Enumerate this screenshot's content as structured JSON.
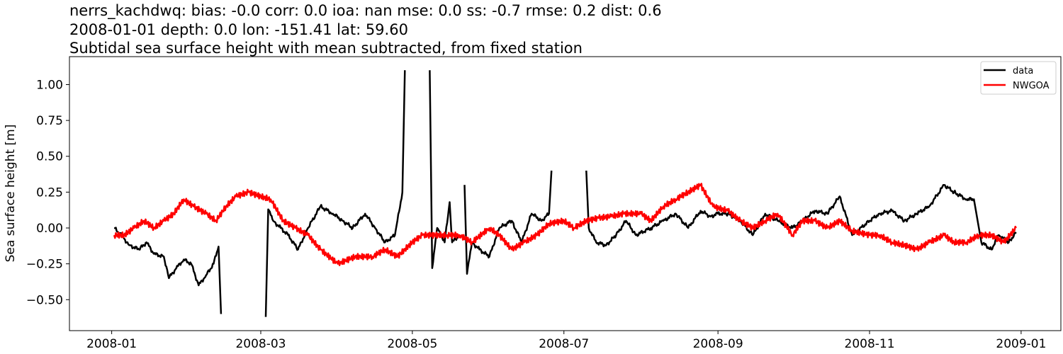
{
  "chart_data": {
    "type": "line",
    "title_lines": [
      "nerrs_kachdwq: bias: -0.0  corr: 0.0  ioa: nan  mse: 0.0  ss: -0.7  rmse: 0.2  dist: 0.6",
      "2008-01-01 depth: 0.0 lon: -151.41 lat: 59.60",
      "Subtidal sea surface height with mean subtracted, from fixed station"
    ],
    "xlabel": "",
    "ylabel": "Sea surface height [m]",
    "xlim": [
      "2007-12-15",
      "2009-01-17"
    ],
    "ylim": [
      -0.716,
      1.195
    ],
    "xticks": [
      "2008-01",
      "2008-03",
      "2008-05",
      "2008-07",
      "2008-09",
      "2008-11",
      "2009-01"
    ],
    "yticks": [
      -0.5,
      -0.25,
      0.0,
      0.25,
      0.5,
      0.75,
      1.0
    ],
    "ytick_labels": [
      "−0.50",
      "−0.25",
      "0.00",
      "0.25",
      "0.50",
      "0.75",
      "1.00"
    ],
    "grid": false,
    "legend_position": "top-right",
    "series": [
      {
        "name": "data",
        "color": "#000000",
        "points": [
          [
            "2008-01-02",
            0.0
          ],
          [
            "2008-01-05",
            -0.05
          ],
          [
            "2008-01-08",
            -0.12
          ],
          [
            "2008-01-12",
            -0.15
          ],
          [
            "2008-01-15",
            -0.1
          ],
          [
            "2008-01-18",
            -0.18
          ],
          [
            "2008-01-22",
            -0.2
          ],
          [
            "2008-01-24",
            -0.35
          ],
          [
            "2008-01-27",
            -0.28
          ],
          [
            "2008-01-30",
            -0.22
          ],
          [
            "2008-02-02",
            -0.25
          ],
          [
            "2008-02-05",
            -0.4
          ],
          [
            "2008-02-08",
            -0.33
          ],
          [
            "2008-02-11",
            -0.25
          ],
          [
            "2008-02-13",
            -0.13
          ],
          [
            "2008-02-14",
            -0.6
          ],
          null,
          [
            "2008-03-03",
            -0.62
          ],
          [
            "2008-03-04",
            0.13
          ],
          [
            "2008-03-06",
            0.05
          ],
          [
            "2008-03-09",
            0.0
          ],
          [
            "2008-03-12",
            -0.05
          ],
          [
            "2008-03-16",
            -0.15
          ],
          [
            "2008-03-20",
            0.0
          ],
          [
            "2008-03-25",
            0.15
          ],
          [
            "2008-03-30",
            0.1
          ],
          [
            "2008-04-03",
            0.05
          ],
          [
            "2008-04-07",
            0.0
          ],
          [
            "2008-04-12",
            0.1
          ],
          [
            "2008-04-16",
            0.0
          ],
          [
            "2008-04-20",
            -0.1
          ],
          [
            "2008-04-24",
            -0.05
          ],
          [
            "2008-04-27",
            0.25
          ],
          [
            "2008-04-28",
            1.1
          ],
          null,
          [
            "2008-05-08",
            1.1
          ],
          [
            "2008-05-09",
            -0.28
          ],
          [
            "2008-05-11",
            0.0
          ],
          [
            "2008-05-14",
            -0.1
          ],
          [
            "2008-05-16",
            0.18
          ],
          [
            "2008-05-17",
            -0.1
          ],
          [
            "2008-05-20",
            -0.05
          ],
          null,
          [
            "2008-05-22",
            0.3
          ],
          [
            "2008-05-23",
            -0.32
          ],
          [
            "2008-05-25",
            -0.1
          ],
          [
            "2008-05-28",
            -0.15
          ],
          [
            "2008-06-01",
            -0.2
          ],
          [
            "2008-06-05",
            0.0
          ],
          [
            "2008-06-10",
            0.05
          ],
          [
            "2008-06-14",
            -0.1
          ],
          [
            "2008-06-18",
            0.1
          ],
          [
            "2008-06-22",
            0.05
          ],
          [
            "2008-06-25",
            0.1
          ],
          [
            "2008-06-26",
            0.4
          ],
          null,
          [
            "2008-07-10",
            0.4
          ],
          [
            "2008-07-11",
            0.0
          ],
          [
            "2008-07-14",
            -0.1
          ],
          [
            "2008-07-18",
            -0.12
          ],
          [
            "2008-07-22",
            -0.05
          ],
          [
            "2008-07-26",
            0.05
          ],
          [
            "2008-07-30",
            -0.05
          ],
          [
            "2008-08-05",
            0.0
          ],
          [
            "2008-08-10",
            0.05
          ],
          [
            "2008-08-15",
            0.1
          ],
          [
            "2008-08-20",
            0.0
          ],
          [
            "2008-08-25",
            0.12
          ],
          [
            "2008-08-29",
            0.08
          ],
          [
            "2008-09-01",
            0.1
          ],
          [
            "2008-09-05",
            0.1
          ],
          [
            "2008-09-10",
            0.05
          ],
          [
            "2008-09-15",
            -0.05
          ],
          [
            "2008-09-20",
            0.1
          ],
          [
            "2008-09-25",
            0.05
          ],
          [
            "2008-10-01",
            0.0
          ],
          [
            "2008-10-05",
            0.05
          ],
          [
            "2008-10-10",
            0.12
          ],
          [
            "2008-10-15",
            0.1
          ],
          [
            "2008-10-20",
            0.22
          ],
          [
            "2008-10-25",
            -0.05
          ],
          [
            "2008-11-01",
            0.05
          ],
          [
            "2008-11-05",
            0.1
          ],
          [
            "2008-11-10",
            0.12
          ],
          [
            "2008-11-15",
            0.05
          ],
          [
            "2008-11-20",
            0.1
          ],
          [
            "2008-11-25",
            0.15
          ],
          [
            "2008-12-01",
            0.3
          ],
          [
            "2008-12-05",
            0.25
          ],
          [
            "2008-12-10",
            0.2
          ],
          [
            "2008-12-13",
            0.2
          ],
          [
            "2008-12-16",
            -0.1
          ],
          [
            "2008-12-20",
            -0.15
          ],
          [
            "2008-12-23",
            -0.05
          ],
          [
            "2008-12-27",
            -0.1
          ],
          [
            "2008-12-30",
            -0.03
          ]
        ]
      },
      {
        "name": "NWGOA",
        "color": "#ff0000",
        "points": [
          [
            "2008-01-02",
            -0.05
          ],
          [
            "2008-01-06",
            -0.05
          ],
          [
            "2008-01-10",
            0.0
          ],
          [
            "2008-01-14",
            0.05
          ],
          [
            "2008-01-18",
            0.0
          ],
          [
            "2008-01-22",
            0.05
          ],
          [
            "2008-01-26",
            0.1
          ],
          [
            "2008-01-30",
            0.2
          ],
          [
            "2008-02-03",
            0.15
          ],
          [
            "2008-02-08",
            0.1
          ],
          [
            "2008-02-12",
            0.05
          ],
          [
            "2008-02-16",
            0.15
          ],
          [
            "2008-02-20",
            0.22
          ],
          [
            "2008-02-25",
            0.25
          ],
          [
            "2008-03-01",
            0.22
          ],
          [
            "2008-03-05",
            0.2
          ],
          [
            "2008-03-10",
            0.05
          ],
          [
            "2008-03-15",
            0.0
          ],
          [
            "2008-03-20",
            -0.05
          ],
          [
            "2008-03-25",
            -0.15
          ],
          [
            "2008-04-01",
            -0.25
          ],
          [
            "2008-04-08",
            -0.2
          ],
          [
            "2008-04-15",
            -0.2
          ],
          [
            "2008-04-20",
            -0.15
          ],
          [
            "2008-04-25",
            -0.2
          ],
          [
            "2008-05-01",
            -0.1
          ],
          [
            "2008-05-05",
            -0.05
          ],
          [
            "2008-05-10",
            -0.05
          ],
          [
            "2008-05-15",
            -0.05
          ],
          [
            "2008-05-20",
            -0.05
          ],
          [
            "2008-05-25",
            -0.1
          ],
          [
            "2008-06-01",
            0.0
          ],
          [
            "2008-06-05",
            -0.05
          ],
          [
            "2008-06-10",
            -0.15
          ],
          [
            "2008-06-15",
            -0.1
          ],
          [
            "2008-06-20",
            -0.05
          ],
          [
            "2008-06-25",
            0.03
          ],
          [
            "2008-07-01",
            0.05
          ],
          [
            "2008-07-05",
            0.0
          ],
          [
            "2008-07-10",
            0.05
          ],
          [
            "2008-07-15",
            0.07
          ],
          [
            "2008-07-20",
            0.08
          ],
          [
            "2008-07-25",
            0.1
          ],
          [
            "2008-08-01",
            0.1
          ],
          [
            "2008-08-05",
            0.05
          ],
          [
            "2008-08-10",
            0.15
          ],
          [
            "2008-08-15",
            0.2
          ],
          [
            "2008-08-20",
            0.25
          ],
          [
            "2008-08-25",
            0.3
          ],
          [
            "2008-08-30",
            0.15
          ],
          [
            "2008-09-05",
            0.12
          ],
          [
            "2008-09-10",
            0.05
          ],
          [
            "2008-09-15",
            0.0
          ],
          [
            "2008-09-20",
            0.05
          ],
          [
            "2008-09-25",
            0.1
          ],
          [
            "2008-10-01",
            -0.05
          ],
          [
            "2008-10-05",
            0.05
          ],
          [
            "2008-10-10",
            0.05
          ],
          [
            "2008-10-15",
            0.0
          ],
          [
            "2008-10-20",
            0.05
          ],
          [
            "2008-10-25",
            -0.02
          ],
          [
            "2008-11-01",
            -0.05
          ],
          [
            "2008-11-05",
            -0.05
          ],
          [
            "2008-11-10",
            -0.1
          ],
          [
            "2008-11-15",
            -0.12
          ],
          [
            "2008-11-20",
            -0.15
          ],
          [
            "2008-11-25",
            -0.1
          ],
          [
            "2008-12-01",
            -0.05
          ],
          [
            "2008-12-05",
            -0.1
          ],
          [
            "2008-12-10",
            -0.1
          ],
          [
            "2008-12-15",
            -0.05
          ],
          [
            "2008-12-20",
            -0.05
          ],
          [
            "2008-12-25",
            -0.1
          ],
          [
            "2008-12-30",
            0.0
          ]
        ]
      }
    ]
  }
}
